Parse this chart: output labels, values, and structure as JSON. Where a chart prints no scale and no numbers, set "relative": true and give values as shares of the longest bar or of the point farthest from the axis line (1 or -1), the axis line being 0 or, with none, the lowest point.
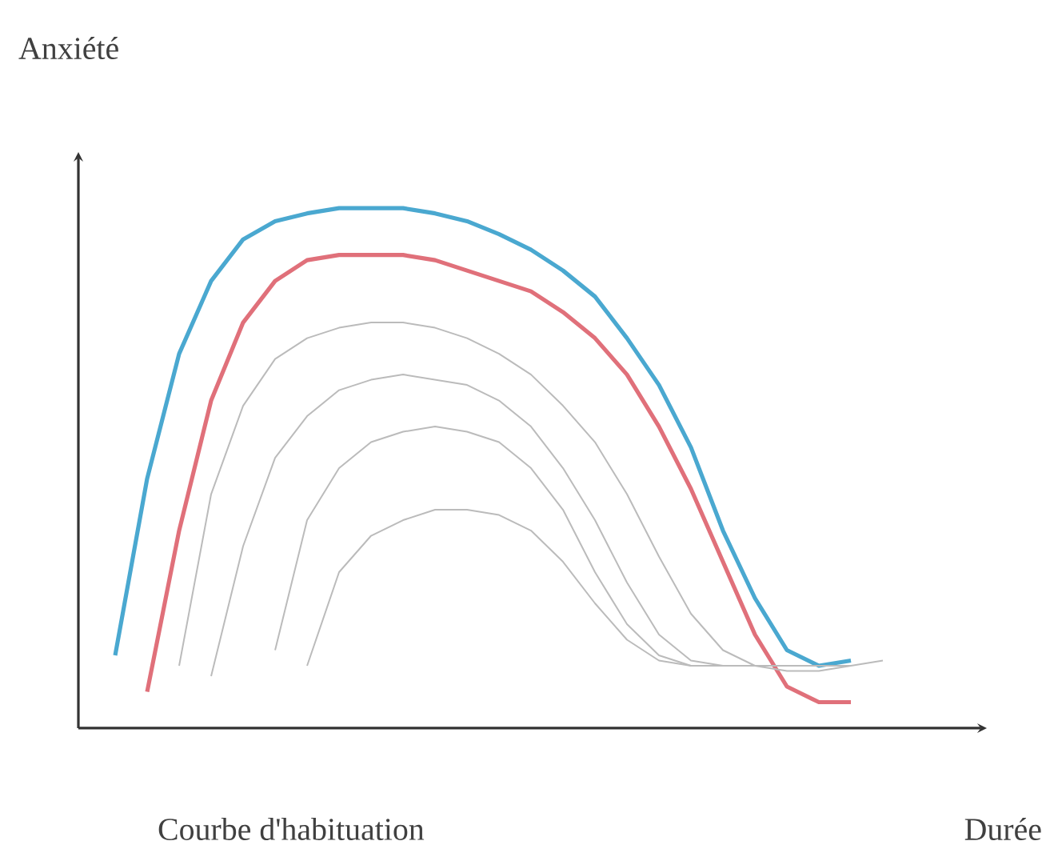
{
  "chart_data": {
    "type": "line",
    "relative": true,
    "xlabel": "Durée",
    "ylabel": "Anxiété",
    "annotations": [
      "Courbe d'habituation"
    ],
    "categories": [
      null,
      null,
      null,
      null,
      null,
      null,
      null,
      null,
      null,
      null,
      null,
      null,
      null,
      null,
      null,
      null,
      null,
      null,
      null,
      null,
      null,
      null,
      null,
      null,
      null
    ],
    "series": [
      {
        "color": "#4aa8d0",
        "values": [
          0.14,
          0.48,
          0.72,
          0.86,
          0.94,
          0.975,
          0.99,
          1.0,
          1.0,
          1.0,
          0.99,
          0.975,
          0.95,
          0.92,
          0.88,
          0.83,
          0.75,
          0.66,
          0.54,
          0.38,
          0.25,
          0.15,
          0.12,
          0.13,
          null
        ]
      },
      {
        "color": "#e0707a",
        "values": [
          null,
          0.07,
          0.38,
          0.63,
          0.78,
          0.86,
          0.9,
          0.91,
          0.91,
          0.91,
          0.9,
          0.88,
          0.86,
          0.84,
          0.8,
          0.75,
          0.68,
          0.58,
          0.46,
          0.32,
          0.18,
          0.08,
          0.05,
          0.05,
          null
        ]
      },
      {
        "color": "#bbbbbb",
        "values": [
          null,
          null,
          0.12,
          0.45,
          0.62,
          0.71,
          0.75,
          0.77,
          0.78,
          0.78,
          0.77,
          0.75,
          0.72,
          0.68,
          0.62,
          0.55,
          0.45,
          0.33,
          0.22,
          0.15,
          0.12,
          0.11,
          0.11,
          0.12,
          0.13
        ]
      },
      {
        "color": "#bbbbbb",
        "values": [
          null,
          null,
          null,
          0.1,
          0.35,
          0.52,
          0.6,
          0.65,
          0.67,
          0.68,
          0.67,
          0.66,
          0.63,
          0.58,
          0.5,
          0.4,
          0.28,
          0.18,
          0.13,
          0.12,
          0.12,
          0.12,
          0.12,
          0.12,
          null
        ]
      },
      {
        "color": "#bbbbbb",
        "values": [
          null,
          null,
          null,
          null,
          null,
          0.15,
          0.4,
          0.5,
          0.55,
          0.57,
          0.58,
          0.57,
          0.55,
          0.5,
          0.42,
          0.3,
          0.2,
          0.14,
          0.12,
          0.12,
          0.12,
          null,
          null,
          null,
          null
        ]
      },
      {
        "color": "#bbbbbb",
        "values": [
          null,
          null,
          null,
          null,
          null,
          null,
          0.12,
          0.3,
          0.37,
          0.4,
          0.42,
          0.42,
          0.41,
          0.38,
          0.32,
          0.24,
          0.17,
          0.13,
          0.12,
          0.12,
          null,
          null,
          null,
          null,
          null
        ]
      }
    ]
  }
}
